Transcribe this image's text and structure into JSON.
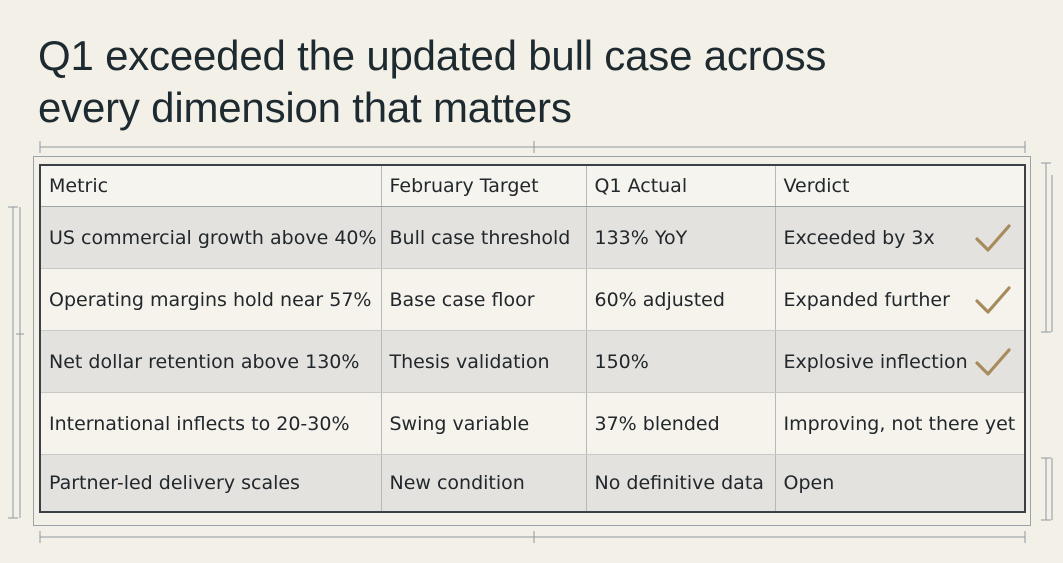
{
  "title": {
    "line1": "Q1 exceeded the updated bull case across",
    "line2": "every dimension that matters"
  },
  "table": {
    "headers": [
      "Metric",
      "February Target",
      "Q1 Actual",
      "Verdict"
    ],
    "rows": [
      {
        "metric": "US commercial growth above 40%",
        "target": "Bull case threshold",
        "actual": "133% YoY",
        "verdict": "Exceeded by 3x",
        "check": true
      },
      {
        "metric": "Operating margins hold near 57%",
        "target": "Base case floor",
        "actual": "60% adjusted",
        "verdict": "Expanded further",
        "check": true
      },
      {
        "metric": "Net dollar retention above 130%",
        "target": "Thesis validation",
        "actual": "150%",
        "verdict": "Explosive inflection",
        "check": true
      },
      {
        "metric": "International inflects to 20-30%",
        "target": "Swing variable",
        "actual": "37% blended",
        "verdict": "Improving, not there yet",
        "check": false
      },
      {
        "metric": "Partner-led delivery scales",
        "target": "New condition",
        "actual": "No definitive data",
        "verdict": "Open",
        "check": false
      }
    ]
  },
  "colors": {
    "background": "#f3f0e7",
    "check": "#a88b5c",
    "row_shade": "#e3e2de"
  },
  "icons": {
    "check": "checkmark-icon"
  }
}
